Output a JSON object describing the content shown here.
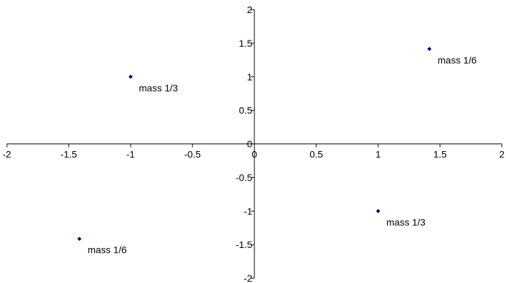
{
  "chart_data": {
    "type": "scatter",
    "title": "",
    "xlabel": "",
    "ylabel": "",
    "xlim": [
      -2,
      2
    ],
    "ylim": [
      -2,
      2
    ],
    "grid": false,
    "legend": "none",
    "axes_through_origin": true,
    "x_ticks": [
      "-2",
      "-1.5",
      "-1",
      "-0.5",
      "0",
      "0.5",
      "1",
      "1.5",
      "2"
    ],
    "y_ticks": [
      "2",
      "1.5",
      "1",
      "0.5",
      "0",
      "-0.5",
      "-1",
      "-1.5",
      "-2"
    ],
    "marker_color": "#000080",
    "points": [
      {
        "x": 1.414,
        "y": 1.414,
        "label": "mass 1/6"
      },
      {
        "x": -1,
        "y": 1,
        "label": "mass 1/3"
      },
      {
        "x": 1,
        "y": -1,
        "label": "mass 1/3"
      },
      {
        "x": -1.414,
        "y": -1.414,
        "label": "mass 1/6"
      }
    ]
  }
}
